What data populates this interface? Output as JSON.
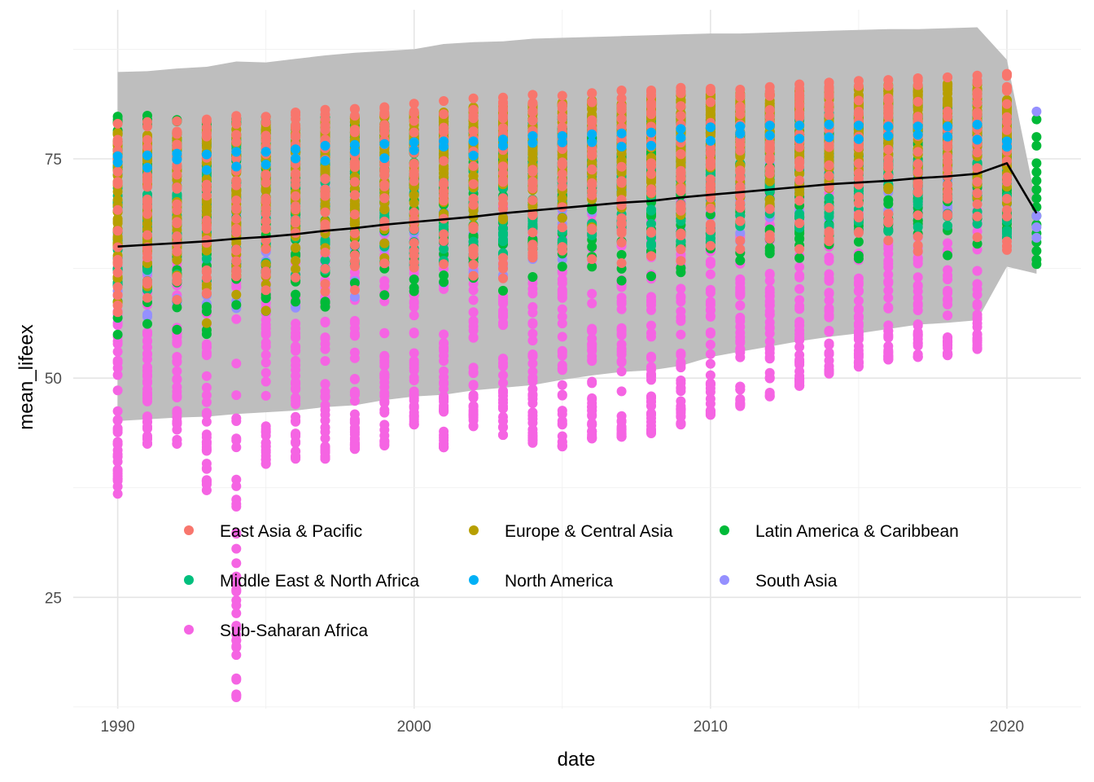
{
  "chart_data": {
    "type": "scatter",
    "title": "",
    "xlabel": "date",
    "ylabel": "mean_lifeex",
    "xlim": [
      1988.5,
      2022.5
    ],
    "ylim": [
      12.3,
      92
    ],
    "x_ticks": [
      1990,
      2000,
      2010,
      2020
    ],
    "x_tick_labels": [
      "1990",
      "2000",
      "2010",
      "2020"
    ],
    "y_ticks": [
      25,
      50,
      75
    ],
    "y_tick_labels": [
      "25",
      "50",
      "75"
    ],
    "grid": true,
    "legend_placement": "inside-bottom",
    "series": [
      {
        "name": "East Asia & Pacific",
        "color": "#F8766D",
        "low": [
          56,
          57,
          57,
          57.5,
          58,
          58,
          58.5,
          59,
          59.5,
          60,
          60,
          60.5,
          61,
          61,
          61.5,
          62,
          62,
          62.5,
          62.5,
          63,
          63,
          63.5,
          63.5,
          64,
          64,
          64,
          64,
          64,
          64,
          64,
          63
        ],
        "high": [
          79,
          79.2,
          79.3,
          79.5,
          79.9,
          79.8,
          80.3,
          80.6,
          80.7,
          80.9,
          81.3,
          81.6,
          81.9,
          82.0,
          82.3,
          82.2,
          82.5,
          82.8,
          82.8,
          83.1,
          83.0,
          82.9,
          83.2,
          83.5,
          83.7,
          83.9,
          84.0,
          84.2,
          84.3,
          84.5,
          84.7
        ]
      },
      {
        "name": "Europe & Central Asia",
        "color": "#B79F00",
        "low": [
          55,
          55.5,
          55,
          54,
          54,
          56,
          58,
          60,
          61,
          62,
          63,
          64,
          64,
          65,
          65.5,
          66,
          66.5,
          67,
          67,
          67.5,
          68,
          68,
          68.5,
          69,
          69,
          69.5,
          70,
          70,
          70,
          70,
          69
        ],
        "high": [
          78,
          78,
          78.5,
          78.8,
          79,
          79,
          79.2,
          79.5,
          79.8,
          80,
          80.3,
          80.6,
          80.9,
          81.1,
          81.4,
          81.6,
          81.8,
          82,
          82.1,
          82.3,
          82.4,
          82.5,
          82.7,
          82.9,
          83.1,
          83.2,
          83.4,
          83.5,
          83.6,
          83.8,
          82
        ]
      },
      {
        "name": "Latin America & Caribbean",
        "color": "#00BA38",
        "low": [
          53,
          53.5,
          54,
          54.5,
          55,
          55.5,
          56,
          56.5,
          57,
          57.5,
          58,
          58.5,
          59,
          59.5,
          60,
          60,
          60.5,
          61,
          61,
          61.5,
          61.5,
          62,
          62,
          62.5,
          62.5,
          63,
          63,
          63,
          63.5,
          63.5,
          63
        ]
      },
      {
        "name": "Middle East & North Africa",
        "color": "#00BF7D",
        "low": [
          59,
          59.5,
          60,
          60.5,
          61,
          61,
          61.5,
          62,
          62,
          62.5,
          62.5,
          63,
          63.5,
          64,
          64,
          64.5,
          64.5,
          65,
          65,
          65.5,
          65.5,
          66,
          66,
          66,
          66.5,
          66.5,
          66.5,
          67,
          67,
          67,
          66
        ],
        "high": [
          76.5,
          76.7,
          76.9,
          77.1,
          77.3,
          77.5,
          77.7,
          77.9,
          78.1,
          78.3,
          78.5,
          78.7,
          78.9,
          79.1,
          79.3,
          79.5,
          79.7,
          79.9,
          80.1,
          80.3,
          80.5,
          80.7,
          80.9,
          81.1,
          81.3,
          81.5,
          81.7,
          81.9,
          82.1,
          82.3,
          82.0
        ]
      },
      {
        "name": "North America",
        "color": "#00B0F6",
        "values": [
          75.3,
          75.4,
          75.6,
          75.5,
          75.8,
          75.8,
          76.1,
          76.5,
          76.6,
          76.7,
          76.9,
          77.0,
          77.0,
          77.2,
          77.6,
          77.6,
          77.8,
          77.9,
          78.0,
          78.4,
          78.6,
          78.7,
          78.8,
          78.8,
          78.9,
          78.8,
          78.7,
          78.7,
          78.7,
          78.9,
          77
        ]
      },
      {
        "name": "South Asia",
        "color": "#9590FF",
        "low": [
          55,
          55.5,
          56,
          56.5,
          57,
          57.5,
          58,
          58.5,
          59,
          59.5,
          60,
          60.5,
          61,
          61.5,
          62,
          62.5,
          63,
          63.5,
          64,
          64.5,
          65,
          65.5,
          66,
          66,
          66.5,
          67,
          67,
          67.5,
          68,
          68,
          66
        ],
        "high": [
          72,
          72,
          72.5,
          73,
          73,
          73.5,
          74,
          74,
          74.5,
          75,
          75,
          75.5,
          76,
          76,
          76.5,
          77,
          77.5,
          78,
          78,
          78.5,
          79,
          79,
          79.5,
          79.5,
          80,
          80,
          80.3,
          80.5,
          80.5,
          80.7,
          80.4
        ]
      },
      {
        "name": "Sub-Saharan Africa",
        "color": "#F564E3",
        "low": [
          36.8,
          42.5,
          42.5,
          37.2,
          13.6,
          40.2,
          40.8,
          40.8,
          41.9,
          42.3,
          44.7,
          42.1,
          44.5,
          43.5,
          42.6,
          42.2,
          43.1,
          43.3,
          43.7,
          44.7,
          45.8,
          46.8,
          47.9,
          49.1,
          50.5,
          51.3,
          52.1,
          52.4,
          52.6,
          53.3
        ],
        "high": [
          65,
          65,
          65.5,
          66,
          66,
          66.5,
          67,
          67,
          67.5,
          68,
          68.5,
          69,
          69.5,
          70,
          70.5,
          71,
          71.5,
          72,
          72.5,
          73,
          73.5,
          74,
          74.5,
          75,
          75,
          75.5,
          76,
          76,
          76.5,
          77
        ]
      }
    ],
    "mean_line": {
      "x": [
        1990,
        1991,
        1992,
        1993,
        1994,
        1995,
        1996,
        1997,
        1998,
        1999,
        2000,
        2001,
        2002,
        2003,
        2004,
        2005,
        2006,
        2007,
        2008,
        2009,
        2010,
        2011,
        2012,
        2013,
        2014,
        2015,
        2016,
        2017,
        2018,
        2019,
        2020,
        2021
      ],
      "y": [
        65.0,
        65.2,
        65.4,
        65.6,
        65.9,
        66.1,
        66.4,
        66.8,
        67.1,
        67.5,
        67.8,
        68.1,
        68.4,
        68.8,
        69.1,
        69.4,
        69.7,
        70.0,
        70.2,
        70.6,
        70.9,
        71.2,
        71.5,
        71.8,
        72.1,
        72.3,
        72.5,
        72.8,
        73.0,
        73.3,
        74.5,
        68.8
      ]
    },
    "band": {
      "x": [
        1990,
        1991,
        1992,
        1993,
        1994,
        1995,
        1996,
        1997,
        1998,
        1999,
        2000,
        2001,
        2002,
        2003,
        2004,
        2005,
        2006,
        2007,
        2008,
        2009,
        2010,
        2011,
        2012,
        2013,
        2014,
        2015,
        2016,
        2017,
        2018,
        2019,
        2020,
        2021
      ],
      "upper": [
        84.9,
        85.0,
        85.3,
        85.5,
        86.1,
        86.0,
        86.4,
        86.8,
        87.1,
        87.3,
        87.5,
        88.1,
        88.3,
        88.4,
        88.7,
        88.8,
        88.9,
        89.0,
        89.1,
        89.2,
        89.3,
        89.3,
        89.4,
        89.5,
        89.6,
        89.7,
        89.8,
        89.8,
        89.9,
        90.0,
        86.3,
        69.8
      ],
      "lower": [
        45.1,
        45.3,
        45.5,
        45.6,
        45.9,
        46.1,
        46.3,
        46.7,
        46.9,
        47.5,
        47.9,
        48.1,
        48.6,
        48.9,
        49.2,
        49.8,
        50.3,
        50.7,
        50.9,
        51.4,
        52.4,
        53.0,
        53.6,
        54.2,
        54.7,
        55.1,
        55.6,
        56.1,
        56.3,
        56.6,
        62.7,
        61.9
      ]
    }
  }
}
